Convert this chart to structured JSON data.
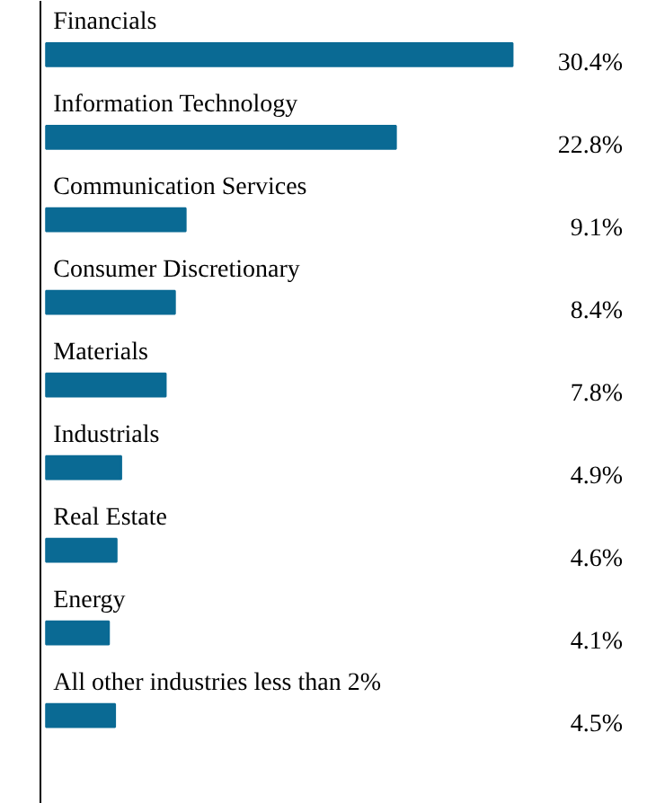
{
  "chart_data": {
    "type": "bar",
    "orientation": "horizontal",
    "categories": [
      "Financials",
      "Information Technology",
      "Communication Services",
      "Consumer Discretionary",
      "Materials",
      "Industrials",
      "Real Estate",
      "Energy",
      "All other industries less than 2%"
    ],
    "values": [
      30.4,
      22.8,
      9.1,
      8.4,
      7.8,
      4.9,
      4.6,
      4.1,
      4.5
    ],
    "value_labels": [
      "30.4%",
      "22.8%",
      "9.1%",
      "8.4%",
      "7.8%",
      "4.9%",
      "4.6%",
      "4.1%",
      "4.5%"
    ],
    "color": "#0a6a94",
    "grid": false
  }
}
